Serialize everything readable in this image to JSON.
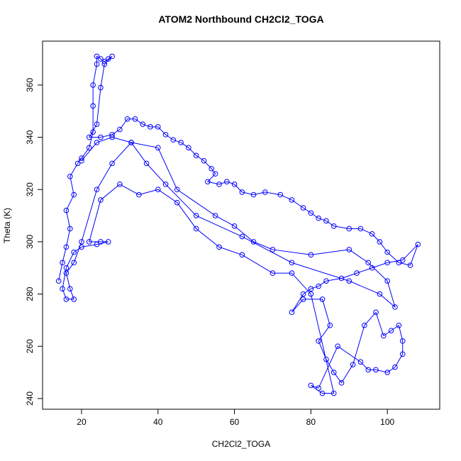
{
  "chart_data": {
    "type": "line",
    "title": "ATOM2 Northbound CH2Cl2_TOGA",
    "x_label": "CH2Cl2_TOGA",
    "y_label": "Theta (K)",
    "xlim": [
      9.8,
      113.7
    ],
    "ylim": [
      235.9,
      376.8
    ],
    "xticks": [
      20,
      40,
      60,
      80,
      100
    ],
    "yticks": [
      240,
      260,
      280,
      300,
      320,
      340,
      360
    ],
    "series": [
      {
        "color": "#0000ff",
        "x": [
          14,
          15,
          16,
          17,
          16,
          18,
          17,
          19,
          20,
          22,
          23,
          23,
          23,
          24,
          24,
          25,
          26,
          27,
          28,
          26,
          25,
          24,
          22,
          25,
          28,
          30,
          32,
          34,
          36,
          38,
          40,
          42,
          44,
          46,
          48,
          50,
          52,
          54,
          55,
          53,
          56,
          58,
          60,
          62,
          65,
          68,
          72,
          75,
          78,
          80,
          82,
          84,
          86,
          90,
          93,
          96,
          98,
          100,
          103,
          106,
          108,
          104,
          100,
          96,
          92,
          88,
          84,
          82,
          80,
          78,
          75,
          78,
          83,
          85,
          82,
          84,
          86,
          88,
          91,
          94,
          97,
          99,
          101,
          103,
          104,
          104,
          102,
          100,
          97,
          95,
          93,
          87,
          82,
          80,
          83,
          86,
          80,
          75,
          70,
          62,
          56,
          50,
          45,
          40,
          35,
          30,
          25,
          22,
          25,
          27,
          24,
          20,
          18,
          16,
          15,
          16,
          18,
          17,
          16,
          18,
          20,
          24,
          28,
          33,
          37,
          42,
          50,
          62,
          75,
          90,
          98,
          102,
          100,
          95,
          90,
          80,
          70,
          65,
          60,
          55,
          45,
          40,
          33,
          28,
          24,
          20
        ],
        "y": [
          285,
          292,
          298,
          305,
          312,
          318,
          325,
          330,
          332,
          336,
          342,
          352,
          360,
          368,
          371,
          370,
          369,
          370,
          371,
          368,
          359,
          345,
          340,
          340,
          341,
          343,
          347,
          347,
          345,
          344,
          344,
          341,
          339,
          338,
          336,
          333,
          331,
          328,
          326,
          323,
          322,
          323,
          322,
          319,
          318,
          319,
          318,
          316,
          313,
          311,
          309,
          308,
          306,
          305,
          305,
          303,
          300,
          296,
          292,
          291,
          299,
          293,
          292,
          290,
          288,
          286,
          285,
          283,
          282,
          280,
          273,
          278,
          278,
          268,
          262,
          255,
          250,
          246,
          253,
          268,
          273,
          264,
          266,
          268,
          262,
          257,
          252,
          250,
          251,
          251,
          254,
          260,
          244,
          245,
          242,
          242,
          280,
          288,
          288,
          295,
          298,
          305,
          315,
          320,
          318,
          322,
          316,
          300,
          300,
          300,
          299,
          298,
          296,
          290,
          282,
          278,
          278,
          282,
          288,
          292,
          300,
          320,
          330,
          338,
          330,
          322,
          310,
          302,
          292,
          285,
          280,
          275,
          285,
          292,
          297,
          295,
          297,
          300,
          306,
          310,
          320,
          336,
          338,
          340,
          338,
          331
        ]
      }
    ]
  }
}
